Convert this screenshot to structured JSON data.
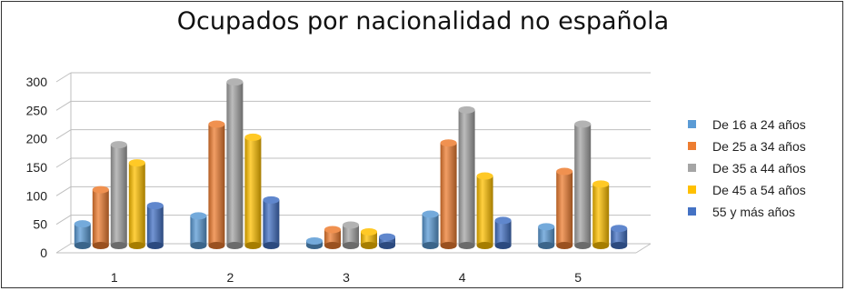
{
  "chart_data": {
    "type": "bar",
    "title": "Ocupados por nacionalidad no española",
    "xlabel": "",
    "ylabel": "",
    "categories": [
      "1",
      "2",
      "3",
      "4",
      "5"
    ],
    "ylim": [
      0,
      300
    ],
    "yticks": [
      "0",
      "50",
      "100",
      "150",
      "200",
      "250",
      "300"
    ],
    "grid": true,
    "legend_position": "right",
    "series": [
      {
        "name": "De 16 a 24 años",
        "color": "#5b9bd5",
        "values": [
          38,
          52,
          8,
          55,
          33
        ]
      },
      {
        "name": "De 25 a 34 años",
        "color": "#ed7d31",
        "values": [
          98,
          213,
          28,
          180,
          130
        ]
      },
      {
        "name": "De 35 a 44 años",
        "color": "#a5a5a5",
        "values": [
          177,
          287,
          36,
          238,
          213
        ]
      },
      {
        "name": "De 45 a 54 años",
        "color": "#ffc000",
        "values": [
          145,
          190,
          24,
          122,
          108
        ]
      },
      {
        "name": "55 y más años",
        "color": "#4472c4",
        "values": [
          70,
          80,
          15,
          44,
          30
        ]
      }
    ]
  }
}
